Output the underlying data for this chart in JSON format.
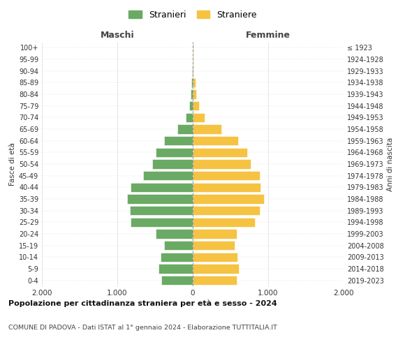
{
  "age_groups": [
    "0-4",
    "5-9",
    "10-14",
    "15-19",
    "20-24",
    "25-29",
    "30-34",
    "35-39",
    "40-44",
    "45-49",
    "50-54",
    "55-59",
    "60-64",
    "65-69",
    "70-74",
    "75-79",
    "80-84",
    "85-89",
    "90-94",
    "95-99",
    "100+"
  ],
  "birth_years": [
    "2019-2023",
    "2014-2018",
    "2009-2013",
    "2004-2008",
    "1999-2003",
    "1994-1998",
    "1989-1993",
    "1984-1988",
    "1979-1983",
    "1974-1978",
    "1969-1973",
    "1964-1968",
    "1959-1963",
    "1954-1958",
    "1949-1953",
    "1944-1948",
    "1939-1943",
    "1934-1938",
    "1929-1933",
    "1924-1928",
    "≤ 1923"
  ],
  "maschi": [
    420,
    450,
    430,
    380,
    490,
    820,
    830,
    870,
    820,
    660,
    540,
    490,
    380,
    200,
    90,
    45,
    30,
    20,
    5,
    2,
    2
  ],
  "femmine": [
    580,
    610,
    590,
    560,
    580,
    820,
    890,
    940,
    900,
    890,
    770,
    720,
    600,
    380,
    160,
    80,
    50,
    35,
    10,
    5,
    5
  ],
  "male_color": "#6aaa64",
  "female_color": "#f5c242",
  "background_color": "#ffffff",
  "grid_color": "#cccccc",
  "xlim": 2000,
  "xticks": [
    -2000,
    -1000,
    0,
    1000,
    2000
  ],
  "xtick_labels": [
    "2.000",
    "1.000",
    "0",
    "1.000",
    "2.000"
  ],
  "title": "Popolazione per cittadinanza straniera per età e sesso - 2024",
  "subtitle": "COMUNE DI PADOVA - Dati ISTAT al 1° gennaio 2024 - Elaborazione TUTTITALIA.IT",
  "ylabel_left": "Fasce di età",
  "ylabel_right": "Anni di nascita",
  "legend_maschi": "Stranieri",
  "legend_femmine": "Straniere",
  "maschi_header": "Maschi",
  "femmine_header": "Femmine"
}
